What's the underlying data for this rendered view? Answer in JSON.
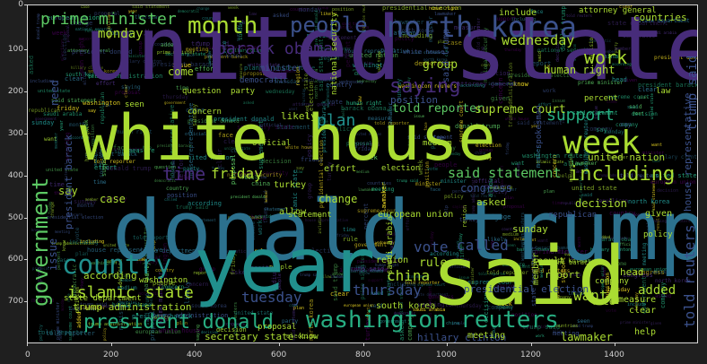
{
  "figure": {
    "x_axis": {
      "ticks": [
        "0",
        "200",
        "400",
        "600",
        "800",
        "1000",
        "1200",
        "1400"
      ]
    },
    "y_axis": {
      "ticks": [
        "0",
        "100",
        "200",
        "300",
        "400",
        "500",
        "600",
        "700"
      ]
    }
  },
  "wordcloud": {
    "palette": [
      "#440154",
      "#472c7a",
      "#3b518b",
      "#2c718e",
      "#21908d",
      "#27ad81",
      "#5cc863",
      "#aadc32",
      "#fde725"
    ],
    "words": [
      "united state",
      "donald trump",
      "white house",
      "said",
      "year",
      "north korea",
      "week",
      "government",
      "country",
      "month",
      "people",
      "washington reuters",
      "president donald",
      "islamic state",
      "barack obama",
      "prime minister",
      "work",
      "support",
      "including",
      "told reporter",
      "supreme court",
      "plan",
      "saying",
      "said statement",
      "time",
      "friday",
      "thursday",
      "tuesday",
      "wednesday",
      "monday",
      "china",
      "called",
      "vote",
      "want",
      "added",
      "lawmaker",
      "secretary state",
      "hillary clinton",
      "south korea",
      "trump administration",
      "told reuters",
      "house representative",
      "united nation",
      "european union",
      "congress",
      "decision",
      "change",
      "rule",
      "say",
      "sunday",
      "group",
      "asked",
      "include",
      "attorney general",
      "human right",
      "countries",
      "minister",
      "official",
      "statement",
      "president barack",
      "issue",
      "need",
      "come",
      "case",
      "question",
      "party",
      "republican",
      "democratic",
      "national security",
      "election",
      "law",
      "report",
      "medium",
      "presidential election",
      "according",
      "trump said",
      "said trump",
      "meeting",
      "given",
      "help",
      "percent",
      "policy",
      "effort",
      "region",
      "state department",
      "proposal",
      "washington",
      "turkey",
      "saudi arabia",
      "company",
      "result",
      "member",
      "position",
      "likely",
      "concern",
      "seen",
      "know",
      "allow",
      "head",
      "face",
      "measure",
      "clear",
      "spokesman"
    ]
  }
}
